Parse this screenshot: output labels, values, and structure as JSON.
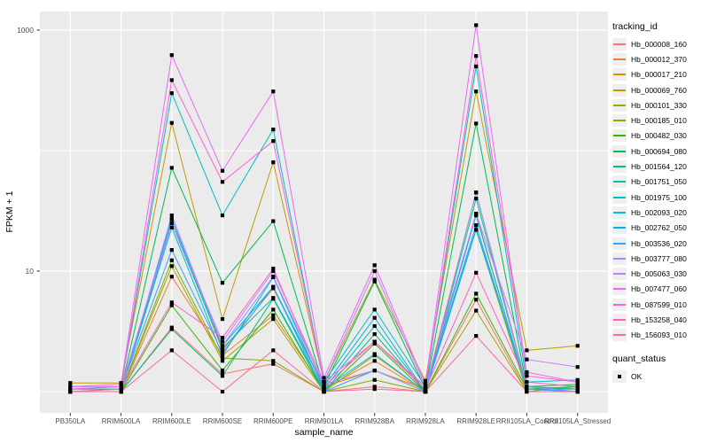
{
  "chart_data": {
    "type": "line",
    "title": "",
    "xlabel": "sample_name",
    "ylabel": "FPKM + 1",
    "y_scale": "log10",
    "ylim": [
      0.9,
      1400
    ],
    "grid": true,
    "panel_bg": "#EBEBEB",
    "grid_color": "#FFFFFF",
    "point_color": "#000000",
    "point_shape": "square",
    "y_ticks": [
      {
        "label": "1000",
        "value": 1000
      },
      {
        "label": "10",
        "value": 10
      }
    ],
    "y_minor_gridlines": [
      1,
      100
    ],
    "categories": [
      "PB350LA",
      "RRIM600LA",
      "RRIM600LE",
      "RRIM600SE",
      "RRIM600PE",
      "RRIM901LA",
      "RRIM928BA",
      "RRIM928LA",
      "RRIM928LE",
      "RRII105LA_Control",
      "RRII105LA_Stressed"
    ],
    "series": [
      {
        "name": "Hb_000008_160",
        "color": "#F8766D",
        "values": [
          1.0,
          1.0,
          3.4,
          1.4,
          1.7,
          1.0,
          1.1,
          1.0,
          5.8,
          1.0,
          1.0
        ]
      },
      {
        "name": "Hb_000012_370",
        "color": "#EA8331",
        "values": [
          1.0,
          1.0,
          9.0,
          2.0,
          4.3,
          1.05,
          1.8,
          1.0,
          30,
          1.05,
          1.0
        ]
      },
      {
        "name": "Hb_000017_210",
        "color": "#D89000",
        "values": [
          1.0,
          1.05,
          27,
          2.2,
          7.2,
          1.1,
          1.5,
          1.05,
          45,
          1.1,
          1.05
        ]
      },
      {
        "name": "Hb_000069_760",
        "color": "#C09B00",
        "values": [
          1.18,
          1.18,
          170,
          4.0,
          80,
          1.2,
          8.5,
          1.23,
          310,
          2.2,
          2.4
        ]
      },
      {
        "name": "Hb_000101_330",
        "color": "#A3A500",
        "values": [
          1.0,
          1.0,
          11,
          1.8,
          4.0,
          1.0,
          2.0,
          1.0,
          4.7,
          1.0,
          1.1
        ]
      },
      {
        "name": "Hb_000185_010",
        "color": "#7CAE00",
        "values": [
          1.0,
          1.0,
          12.3,
          1.9,
          1.8,
          1.0,
          1.25,
          1.0,
          22,
          1.0,
          1.0
        ]
      },
      {
        "name": "Hb_000482_030",
        "color": "#39B600",
        "values": [
          1.0,
          1.0,
          5.2,
          1.5,
          4.8,
          1.0,
          2.5,
          1.0,
          6.5,
          1.05,
          1.1
        ]
      },
      {
        "name": "Hb_000694_080",
        "color": "#00BB4E",
        "values": [
          1.05,
          1.05,
          72,
          8.0,
          26,
          1.1,
          8.2,
          1.05,
          168,
          1.1,
          1.15
        ]
      },
      {
        "name": "Hb_001564_120",
        "color": "#00BF7D",
        "values": [
          1.0,
          1.0,
          3.3,
          1.35,
          5.9,
          1.0,
          3.0,
          1.0,
          24,
          1.05,
          1.05
        ]
      },
      {
        "name": "Hb_001751_050",
        "color": "#00C1A3",
        "values": [
          1.0,
          1.0,
          25,
          2.3,
          6.0,
          1.05,
          3.5,
          1.0,
          40,
          1.1,
          1.05
        ]
      },
      {
        "name": "Hb_001975_100",
        "color": "#00BFC4",
        "values": [
          1.05,
          1.1,
          300,
          29,
          150,
          1.2,
          4.8,
          1.1,
          500,
          1.2,
          1.25
        ]
      },
      {
        "name": "Hb_002093_020",
        "color": "#00BAE0",
        "values": [
          1.0,
          1.0,
          23,
          2.0,
          8.9,
          1.05,
          2.05,
          1.0,
          29,
          1.05,
          1.0
        ]
      },
      {
        "name": "Hb_002762_050",
        "color": "#00B0F6",
        "values": [
          1.0,
          1.0,
          27,
          2.4,
          7.4,
          1.1,
          4.1,
          1.0,
          22,
          1.1,
          1.0
        ]
      },
      {
        "name": "Hb_003536_020",
        "color": "#35A2FF",
        "values": [
          1.0,
          1.05,
          15,
          2.1,
          7.4,
          1.0,
          1.5,
          1.0,
          24,
          1.05,
          1.0
        ]
      },
      {
        "name": "Hb_003777_080",
        "color": "#9590FF",
        "values": [
          1.0,
          1.0,
          29,
          2.4,
          9.0,
          1.15,
          1.5,
          1.0,
          45,
          1.1,
          1.0
        ]
      },
      {
        "name": "Hb_005063_030",
        "color": "#C77CFF",
        "values": [
          1.1,
          1.1,
          25,
          2.6,
          10,
          1.2,
          10,
          1.1,
          30,
          1.85,
          1.6
        ]
      },
      {
        "name": "Hb_007477_060",
        "color": "#E76BF3",
        "values": [
          1.1,
          1.15,
          620,
          68,
          310,
          1.3,
          11.2,
          1.15,
          1100,
          1.35,
          1.2
        ]
      },
      {
        "name": "Hb_087599_010",
        "color": "#FA62DB",
        "values": [
          1.05,
          1.1,
          385,
          55,
          120,
          1.2,
          2.6,
          1.1,
          610,
          1.45,
          1.2
        ]
      },
      {
        "name": "Hb_153258_040",
        "color": "#FF62BC",
        "values": [
          1.0,
          1.05,
          5.5,
          2.8,
          10.5,
          1.1,
          2.6,
          1.05,
          9.7,
          1.2,
          1.1
        ]
      },
      {
        "name": "Hb_156093_010",
        "color": "#FF6A98",
        "values": [
          1.0,
          1.0,
          2.2,
          1.0,
          2.2,
          1.0,
          1.05,
          1.0,
          2.9,
          1.0,
          1.0
        ]
      }
    ],
    "legend": {
      "tracking_title": "tracking_id",
      "quant_title": "quant_status",
      "quant_entries": [
        {
          "label": "OK",
          "marker": "black-square"
        }
      ],
      "position": "right"
    }
  }
}
